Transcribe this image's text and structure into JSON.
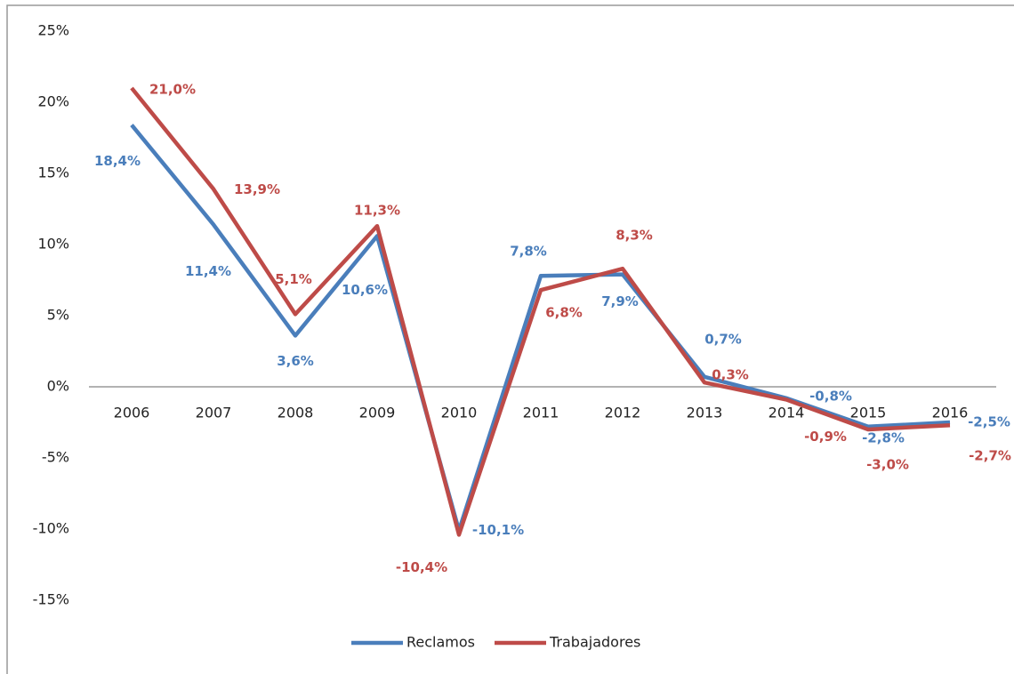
{
  "chart_data": {
    "type": "line",
    "categories": [
      "2006",
      "2007",
      "2008",
      "2009",
      "2010",
      "2011",
      "2012",
      "2013",
      "2014",
      "2015",
      "2016"
    ],
    "series": [
      {
        "name": "Reclamos",
        "color": "#4a7ebb",
        "values": [
          18.4,
          11.4,
          3.6,
          10.6,
          -10.1,
          7.8,
          7.9,
          0.7,
          -0.8,
          -2.8,
          -2.5
        ],
        "value_labels": [
          "18,4%",
          "11,4%",
          "3,6%",
          "10,6%",
          "-10,1%",
          "7,8%",
          "7,9%",
          "0,7%",
          "-0,8%",
          "-2,8%",
          "-2,5%"
        ]
      },
      {
        "name": "Trabajadores",
        "color": "#be4b48",
        "values": [
          21.0,
          13.9,
          5.1,
          11.3,
          -10.4,
          6.8,
          8.3,
          0.3,
          -0.9,
          -3.0,
          -2.7
        ],
        "value_labels": [
          "21,0%",
          "13,9%",
          "5,1%",
          "11,3%",
          "-10,4%",
          "6,8%",
          "8,3%",
          "0,3%",
          "-0,9%",
          "-3,0%",
          "-2,7%"
        ]
      }
    ],
    "ylim": [
      -15,
      25
    ],
    "yticks": [
      {
        "value": -15,
        "label": "-15%"
      },
      {
        "value": -10,
        "label": "-10%"
      },
      {
        "value": -5,
        "label": "-5%"
      },
      {
        "value": 0,
        "label": "0%"
      },
      {
        "value": 5,
        "label": "5%"
      },
      {
        "value": 10,
        "label": "10%"
      },
      {
        "value": 15,
        "label": "15%"
      },
      {
        "value": 20,
        "label": "20%"
      },
      {
        "value": 25,
        "label": "25%"
      }
    ],
    "legend": "bottom"
  }
}
